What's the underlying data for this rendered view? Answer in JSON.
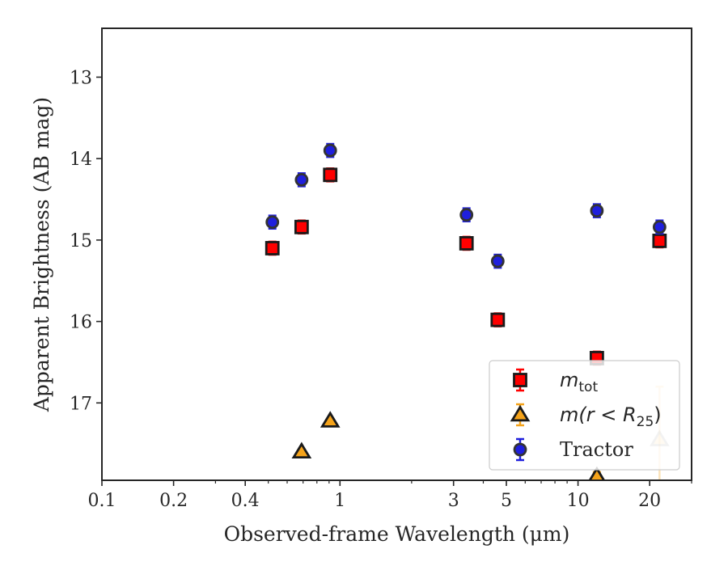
{
  "chart_data": {
    "type": "scatter",
    "xlabel": "Observed-frame Wavelength (μm)",
    "ylabel": "Apparent Brightness (AB mag)",
    "xscale": "log",
    "xlim": [
      0.1,
      30
    ],
    "ylim": [
      17.95,
      12.4
    ],
    "y_inverted": true,
    "xticks": [
      0.1,
      0.2,
      0.4,
      1,
      3,
      5,
      10,
      20
    ],
    "xtick_labels": [
      "0.1",
      "0.2",
      "0.4",
      "1",
      "3",
      "5",
      "10",
      "20"
    ],
    "yticks": [
      13,
      14,
      15,
      16,
      17
    ],
    "ytick_labels": [
      "13",
      "14",
      "15",
      "16",
      "17"
    ],
    "grid": false,
    "legend_position": "bottom-right",
    "series": [
      {
        "name": "m_tot",
        "legend": {
          "main": "m",
          "sub": "tot"
        },
        "marker": "square",
        "color": "#ff0000",
        "edge": "#1a1a1a",
        "errcolor": "#ff0000",
        "x": [
          0.52,
          0.69,
          0.91,
          3.4,
          4.6,
          12,
          22
        ],
        "y": [
          15.1,
          14.84,
          14.2,
          15.04,
          15.98,
          16.45,
          15.01
        ],
        "err": [
          0.08,
          0.08,
          0.08,
          0.08,
          0.08,
          0.08,
          0.08
        ]
      },
      {
        "name": "m(r < R25)",
        "legend": {
          "prefix": "m(r < R",
          "sub": "25",
          "suffix": ")"
        },
        "marker": "triangle",
        "color": "#f5a31a",
        "edge": "#1a1a1a",
        "errcolor": "#f5a31a",
        "x": [
          0.69,
          0.91,
          12,
          22
        ],
        "y": [
          17.6,
          17.22,
          17.9,
          17.45
        ],
        "err": [
          0.02,
          0.02,
          0.05,
          0.65
        ],
        "alpha": [
          1,
          1,
          1,
          0.3
        ]
      },
      {
        "name": "Tractor",
        "legend": {
          "main": "Tractor"
        },
        "marker": "circle",
        "color": "#1f1fdd",
        "edge": "#333333",
        "errcolor": "#1f1fdd",
        "x": [
          0.52,
          0.69,
          0.91,
          3.4,
          4.6,
          12,
          22
        ],
        "y": [
          14.78,
          14.26,
          13.9,
          14.69,
          15.26,
          14.64,
          14.84
        ],
        "err": [
          0.08,
          0.08,
          0.08,
          0.08,
          0.08,
          0.08,
          0.08
        ]
      }
    ]
  }
}
